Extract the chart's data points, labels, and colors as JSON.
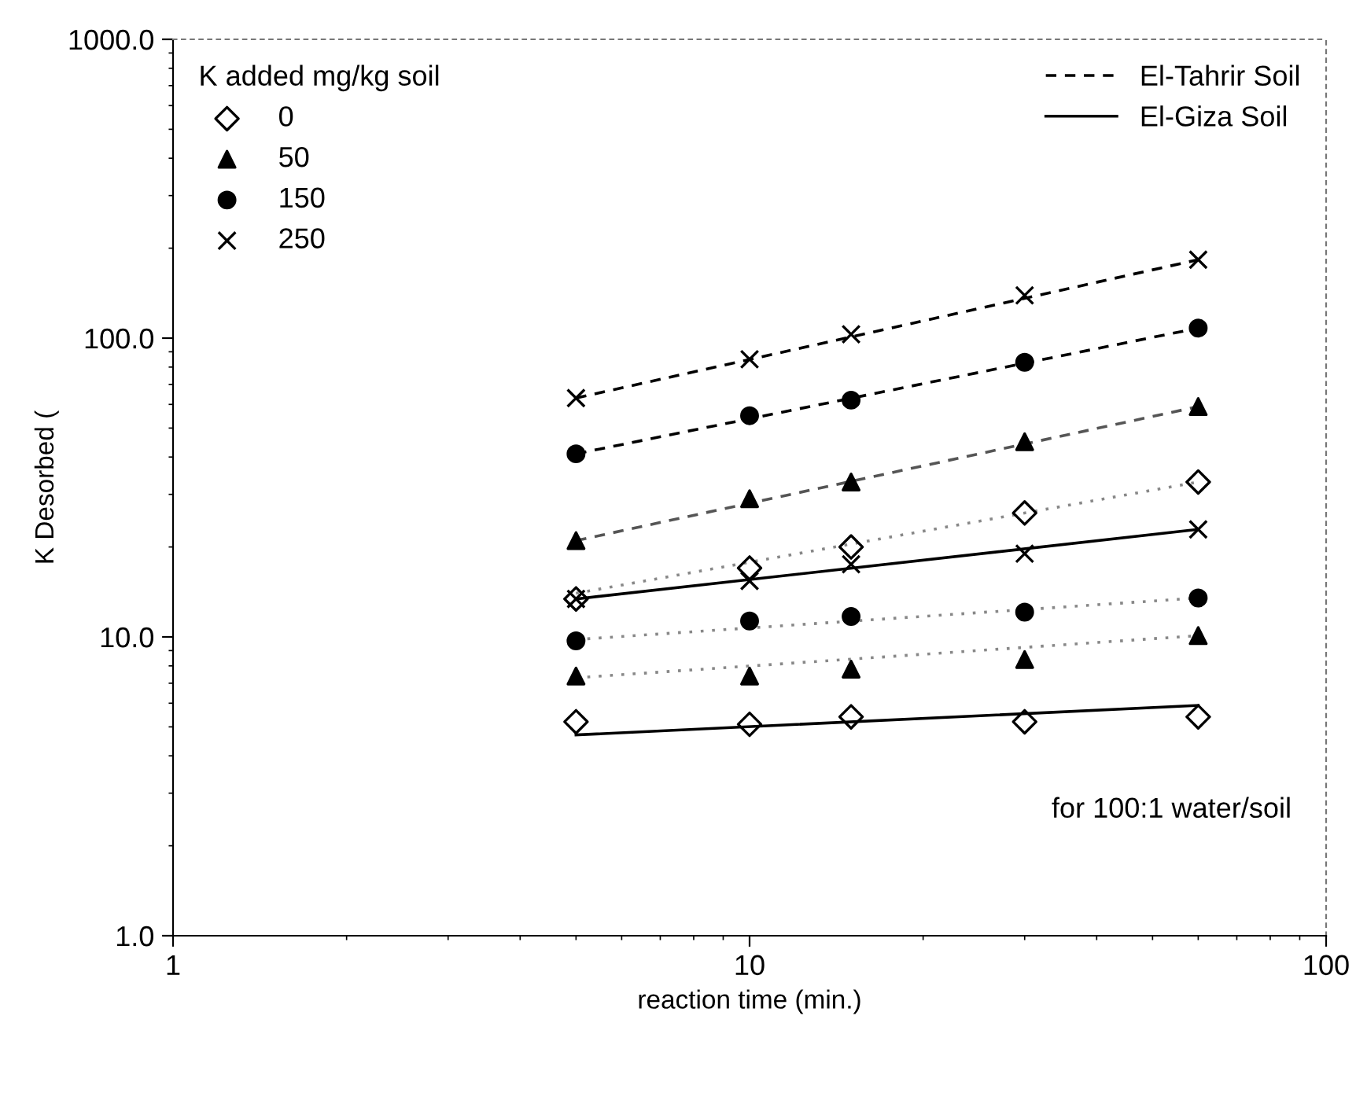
{
  "chart_data": {
    "type": "scatter",
    "xlabel": "reaction time (min.)",
    "ylabel": "K Desorbed (",
    "legend_title": "K added mg/kg soil",
    "legend": "top left",
    "log": "xy",
    "grid": false,
    "xlim": [
      1,
      100
    ],
    "xticks": [
      1,
      10,
      100
    ],
    "ylim": [
      1,
      1000
    ],
    "yticks": [
      {
        "value": 1,
        "label": "1.0"
      },
      {
        "value": 10,
        "label": "10.0"
      },
      {
        "value": 100,
        "label": "100.0"
      },
      {
        "value": 1000,
        "label": "1000.0"
      }
    ],
    "annotations": [
      {
        "text": "for 100:1 water/soil"
      }
    ],
    "series": [
      {
        "name": "0",
        "marker": "diamond",
        "color": "#000000",
        "x": [
          5,
          10,
          15,
          30,
          60
        ],
        "values": [
          13.4,
          17,
          20,
          26,
          33
        ]
      },
      {
        "name": "50",
        "marker": "triangle",
        "color": "#000000",
        "x": [
          5,
          10,
          15,
          30,
          60
        ],
        "values": [
          21,
          29,
          33,
          45,
          59
        ]
      },
      {
        "name": "150",
        "marker": "circle",
        "color": "#000000",
        "x": [
          5,
          10,
          15,
          30,
          60
        ],
        "values": [
          41,
          55,
          62,
          83,
          108
        ]
      },
      {
        "name": "250",
        "marker": "cross",
        "color": "#000000",
        "x": [
          5,
          10,
          15,
          30,
          60
        ],
        "values": [
          63,
          85,
          103,
          139,
          183
        ]
      },
      {
        "marker": "diamond",
        "color": "#000000",
        "x": [
          5,
          10,
          15,
          30,
          60
        ],
        "values": [
          5.2,
          5.1,
          5.4,
          5.2,
          5.4
        ]
      },
      {
        "marker": "triangle",
        "color": "#000000",
        "x": [
          5,
          10,
          15,
          30,
          60
        ],
        "values": [
          7.4,
          7.4,
          7.8,
          8.4,
          10.1
        ]
      },
      {
        "marker": "circle",
        "color": "#000000",
        "x": [
          5,
          10,
          15,
          30,
          60
        ],
        "values": [
          9.7,
          11.3,
          11.7,
          12.1,
          13.5
        ]
      },
      {
        "marker": "cross",
        "color": "#000000",
        "x": [
          5,
          10,
          15,
          30,
          60
        ],
        "values": [
          13.4,
          15.4,
          17.5,
          19.0,
          22.9
        ]
      },
      {
        "name": "El-Tahrir Soil",
        "type": "line",
        "line_style": "dashed",
        "color": "#000000",
        "x": [
          5,
          60
        ],
        "values": [
          63,
          183
        ]
      },
      {
        "type": "line",
        "line_style": "dashed",
        "color": "#000000",
        "x": [
          5,
          60
        ],
        "values": [
          41,
          108
        ]
      },
      {
        "type": "line",
        "line_style": "dashed",
        "color": "#555555",
        "x": [
          5,
          60
        ],
        "values": [
          21,
          59
        ]
      },
      {
        "type": "line",
        "line_style": "dotted",
        "color": "#888888",
        "x": [
          5,
          60
        ],
        "values": [
          14,
          33
        ]
      },
      {
        "name": "El-Giza Soil",
        "type": "line",
        "line_style": "solid",
        "color": "#000000",
        "x": [
          5,
          60
        ],
        "values": [
          13.4,
          22.9
        ]
      },
      {
        "type": "line",
        "line_style": "dotted",
        "color": "#888888",
        "x": [
          5,
          60
        ],
        "values": [
          9.8,
          13.5
        ]
      },
      {
        "type": "line",
        "line_style": "dotted",
        "color": "#888888",
        "x": [
          5,
          60
        ],
        "values": [
          7.3,
          10.1
        ]
      },
      {
        "type": "line",
        "line_style": "solid",
        "color": "#000000",
        "x": [
          5,
          60
        ],
        "values": [
          4.7,
          5.9
        ]
      }
    ]
  }
}
